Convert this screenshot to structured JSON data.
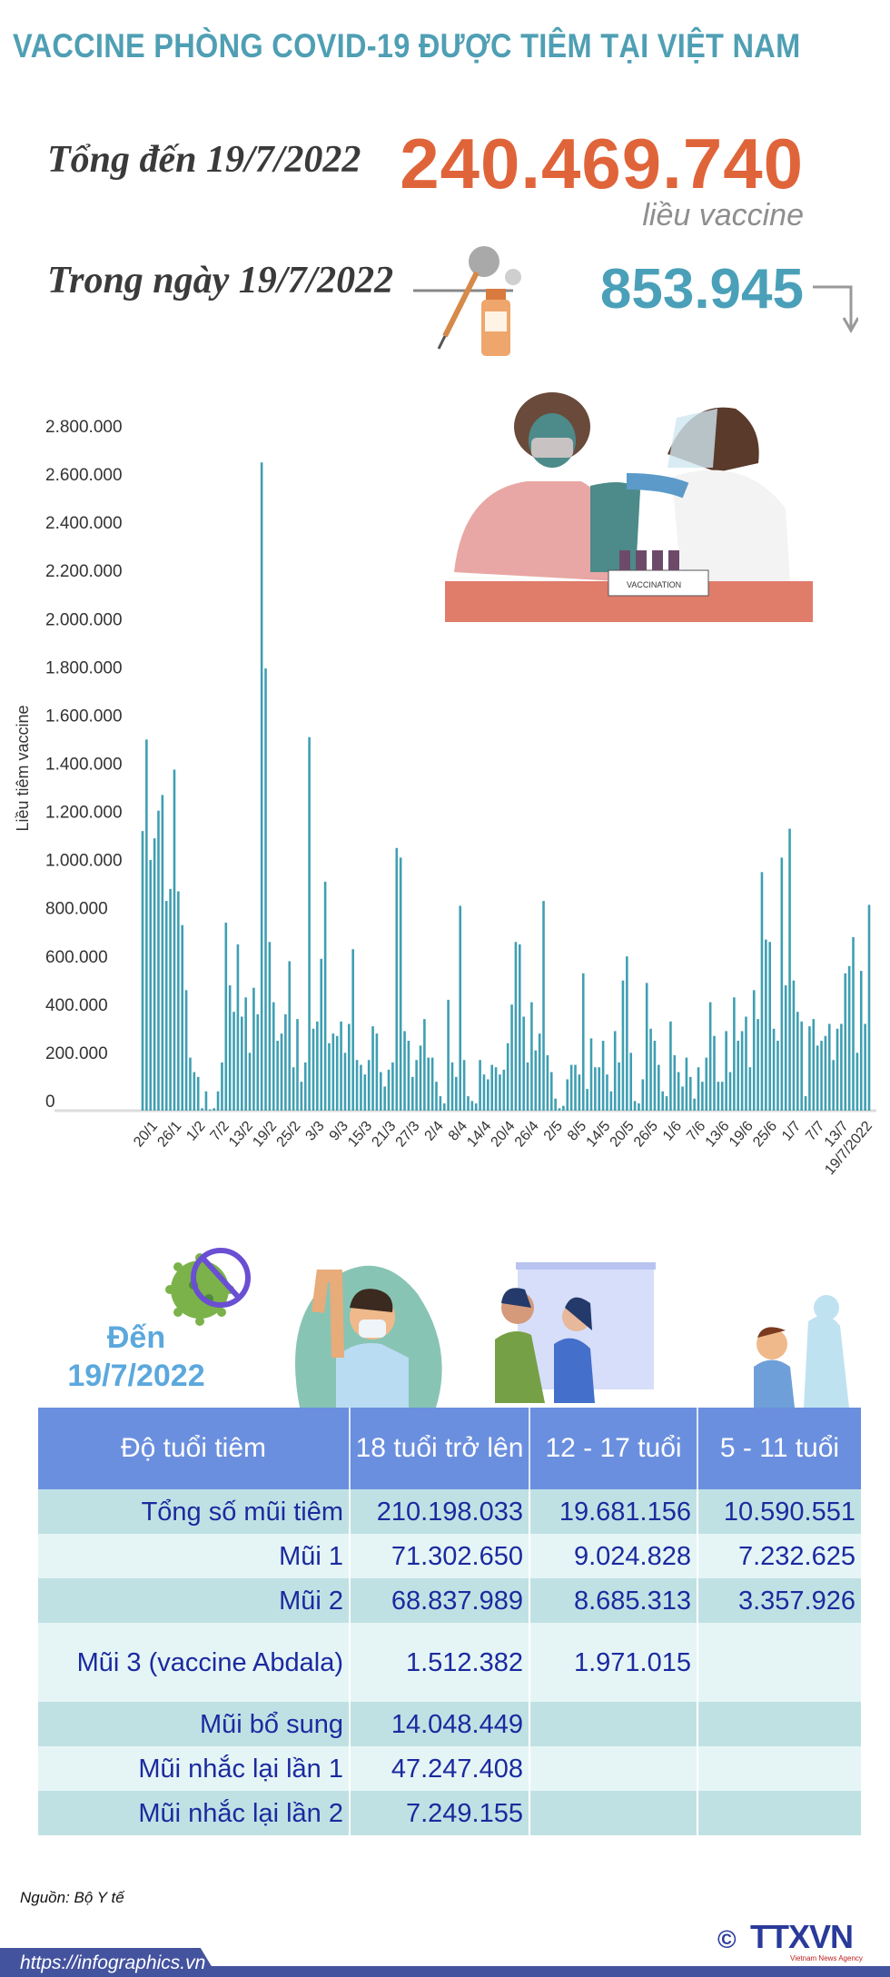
{
  "title": "VACCINE PHÒNG COVID-19 ĐƯỢC TIÊM TẠI VIỆT NAM",
  "summary": {
    "total_label": "Tổng đến 19/7/2022",
    "total_value": "240.469.740",
    "total_unit": "liều vaccine",
    "today_label": "Trong ngày 19/7/2022",
    "today_value": "853.945",
    "today_trend_icon": "arrow-down-icon"
  },
  "colors": {
    "title": "#4f9fb4",
    "total": "#e0643a",
    "today": "#4aa0b8",
    "bars": "#3f9fb2",
    "table_header": "#6b8fdf",
    "table_text": "#1b2a9e",
    "footer": "#44539e"
  },
  "chart_data": {
    "type": "bar",
    "title": "",
    "xlabel": "",
    "ylabel": "Liều tiêm vaccine",
    "ylim": [
      0,
      2800000
    ],
    "grid": false,
    "y_tick_labels": [
      "0",
      "200.000",
      "400.000",
      "600.000",
      "800.000",
      "1.000.000",
      "1.200.000",
      "1.400.000",
      "1.600.000",
      "1.800.000",
      "2.000.000",
      "2.200.000",
      "2.400.000",
      "2.600.000",
      "2.800.000"
    ],
    "x_tick_labels": [
      "20/1",
      "26/1",
      "1/2",
      "7/2",
      "13/2",
      "19/2",
      "25/2",
      "3/3",
      "9/3",
      "15/3",
      "21/3",
      "27/3",
      "2/4",
      "8/4",
      "14/4",
      "20/4",
      "26/4",
      "2/5",
      "8/5",
      "14/5",
      "20/5",
      "26/5",
      "1/6",
      "7/6",
      "13/6",
      "19/6",
      "25/6",
      "1/7",
      "7/7",
      "13/7",
      "19/7/2022"
    ],
    "categories": [
      "17/1",
      "18/1",
      "19/1",
      "20/1",
      "21/1",
      "22/1",
      "23/1",
      "24/1",
      "25/1",
      "26/1",
      "27/1",
      "28/1",
      "29/1",
      "30/1",
      "31/1",
      "1/2",
      "2/2",
      "3/2",
      "4/2",
      "5/2",
      "6/2",
      "7/2",
      "8/2",
      "9/2",
      "10/2",
      "11/2",
      "12/2",
      "13/2",
      "14/2",
      "15/2",
      "16/2",
      "17/2",
      "18/2",
      "19/2",
      "20/2",
      "21/2",
      "22/2",
      "23/2",
      "24/2",
      "25/2",
      "26/2",
      "27/2",
      "28/2",
      "1/3",
      "2/3",
      "3/3",
      "4/3",
      "5/3",
      "6/3",
      "7/3",
      "8/3",
      "9/3",
      "10/3",
      "11/3",
      "12/3",
      "13/3",
      "14/3",
      "15/3",
      "16/3",
      "17/3",
      "18/3",
      "19/3",
      "20/3",
      "21/3",
      "22/3",
      "23/3",
      "24/3",
      "25/3",
      "26/3",
      "27/3",
      "28/3",
      "29/3",
      "30/3",
      "31/3",
      "1/4",
      "2/4",
      "3/4",
      "4/4",
      "5/4",
      "6/4",
      "7/4",
      "8/4",
      "9/4",
      "10/4",
      "11/4",
      "12/4",
      "13/4",
      "14/4",
      "15/4",
      "16/4",
      "17/4",
      "18/4",
      "19/4",
      "20/4",
      "21/4",
      "22/4",
      "23/4",
      "24/4",
      "25/4",
      "26/4",
      "27/4",
      "28/4",
      "29/4",
      "30/4",
      "1/5",
      "2/5",
      "3/5",
      "4/5",
      "5/5",
      "6/5",
      "7/5",
      "8/5",
      "9/5",
      "10/5",
      "11/5",
      "12/5",
      "13/5",
      "14/5",
      "15/5",
      "16/5",
      "17/5",
      "18/5",
      "19/5",
      "20/5",
      "21/5",
      "22/5",
      "23/5",
      "24/5",
      "25/5",
      "26/5",
      "27/5",
      "28/5",
      "29/5",
      "30/5",
      "31/5",
      "1/6",
      "2/6",
      "3/6",
      "4/6",
      "5/6",
      "6/6",
      "7/6",
      "8/6",
      "9/6",
      "10/6",
      "11/6",
      "12/6",
      "13/6",
      "14/6",
      "15/6",
      "16/6",
      "17/6",
      "18/6",
      "19/6",
      "20/6",
      "21/6",
      "22/6",
      "23/6",
      "24/6",
      "25/6",
      "26/6",
      "27/6",
      "28/6",
      "29/6",
      "30/6",
      "1/7",
      "2/7",
      "3/7",
      "4/7",
      "5/7",
      "6/7",
      "7/7",
      "8/7",
      "9/7",
      "10/7",
      "11/7",
      "12/7",
      "13/7",
      "14/7",
      "15/7",
      "16/7",
      "17/7",
      "18/7",
      "19/7"
    ],
    "values": [
      1160000,
      1540000,
      1040000,
      1130000,
      1245000,
      1310000,
      870000,
      920000,
      1415000,
      910000,
      770000,
      500000,
      220000,
      160000,
      140000,
      10000,
      80000,
      5000,
      10000,
      80000,
      200000,
      780000,
      520000,
      410000,
      690000,
      390000,
      470000,
      240000,
      510000,
      400000,
      2690000,
      1835000,
      700000,
      450000,
      290000,
      320000,
      400000,
      620000,
      180000,
      380000,
      120000,
      200000,
      1550000,
      340000,
      370000,
      630000,
      950000,
      280000,
      320000,
      310000,
      370000,
      240000,
      360000,
      670000,
      210000,
      190000,
      150000,
      210000,
      350000,
      320000,
      160000,
      100000,
      170000,
      200000,
      1090000,
      1050000,
      330000,
      290000,
      140000,
      210000,
      270000,
      380000,
      220000,
      220000,
      120000,
      60000,
      30000,
      460000,
      200000,
      140000,
      850000,
      210000,
      60000,
      40000,
      30000,
      210000,
      150000,
      130000,
      190000,
      180000,
      150000,
      170000,
      280000,
      440000,
      700000,
      690000,
      390000,
      200000,
      450000,
      250000,
      320000,
      870000,
      230000,
      160000,
      50000,
      10000,
      20000,
      130000,
      190000,
      190000,
      150000,
      570000,
      90000,
      300000,
      180000,
      180000,
      290000,
      150000,
      80000,
      330000,
      200000,
      540000,
      640000,
      240000,
      40000,
      30000,
      130000,
      530000,
      340000,
      290000,
      190000,
      80000,
      60000,
      370000,
      230000,
      160000,
      100000,
      220000,
      140000,
      50000,
      180000,
      120000,
      220000,
      450000,
      310000,
      120000,
      120000,
      330000,
      160000,
      470000,
      290000,
      330000,
      390000,
      180000,
      500000,
      380000,
      990000,
      710000,
      700000,
      340000,
      290000,
      1050000,
      520000,
      1170000,
      540000,
      410000,
      370000,
      60000,
      350000,
      380000,
      270000,
      290000,
      310000,
      360000,
      210000,
      340000,
      360000,
      570000,
      600000,
      720000,
      240000,
      580000,
      360000,
      853945
    ]
  },
  "age_section": {
    "date_label_line1": "Đến",
    "date_label_line2": "19/7/2022"
  },
  "table": {
    "headers": [
      "Độ tuổi tiêm",
      "18 tuổi trở lên",
      "12 - 17 tuổi",
      "5 - 11 tuổi"
    ],
    "rows": [
      {
        "label": "Tổng số mũi tiêm",
        "values": [
          "210.198.033",
          "19.681.156",
          "10.590.551"
        ]
      },
      {
        "label": "Mũi 1",
        "values": [
          "71.302.650",
          "9.024.828",
          "7.232.625"
        ]
      },
      {
        "label": "Mũi 2",
        "values": [
          "68.837.989",
          "8.685.313",
          "3.357.926"
        ]
      },
      {
        "label": "Mũi 3 (vaccine Abdala)",
        "values": [
          "1.512.382",
          "1.971.015",
          ""
        ]
      },
      {
        "label": "Mũi bổ sung",
        "values": [
          "14.048.449",
          "",
          ""
        ]
      },
      {
        "label": "Mũi nhắc lại lần 1",
        "values": [
          "47.247.408",
          "",
          ""
        ]
      },
      {
        "label": "Mũi nhắc lại lần 2",
        "values": [
          "7.249.155",
          "",
          ""
        ]
      }
    ]
  },
  "footer": {
    "source": "Nguồn: Bộ Y tế",
    "url": "https://infographics.vn",
    "logo_text": "TTXVN",
    "logo_subtext": "Vietnam News Agency",
    "copyright_symbol": "©"
  }
}
